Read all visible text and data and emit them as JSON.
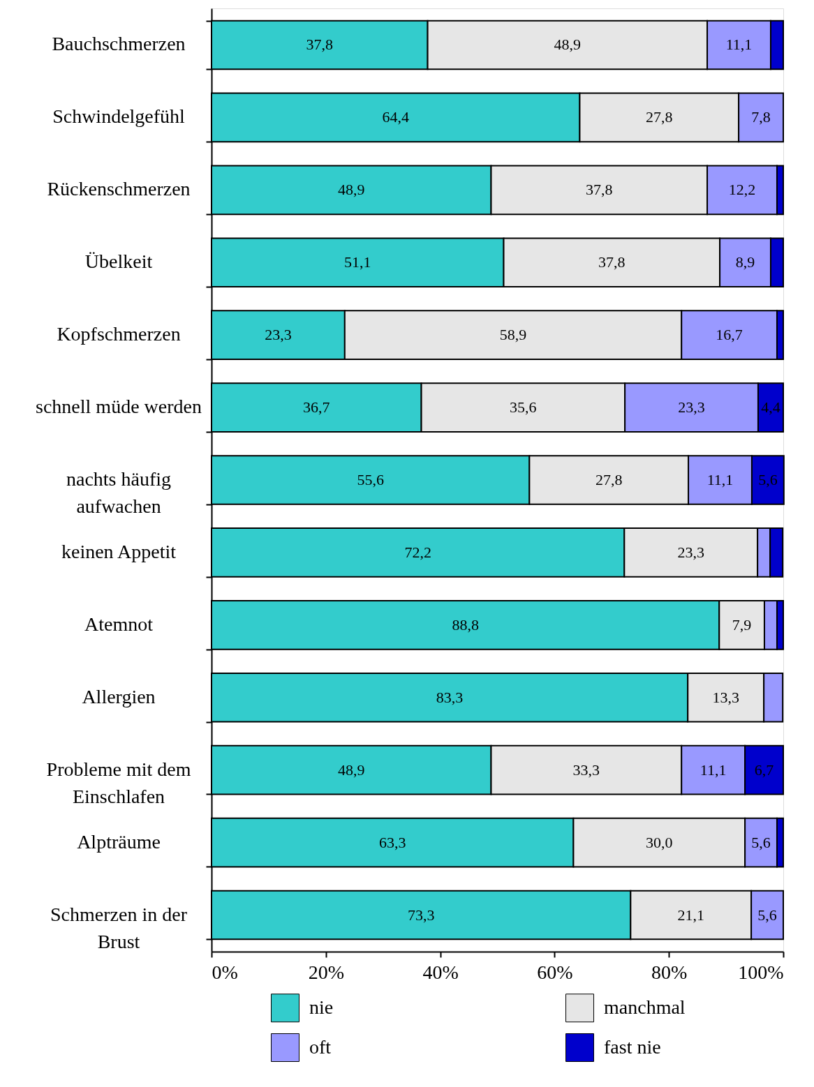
{
  "chart_data": {
    "type": "bar",
    "orientation": "horizontal",
    "stacked": true,
    "categories": [
      "Bauchschmerzen",
      "Schwindelgefühl",
      "Rückenschmerzen",
      "Übelkeit",
      "Kopfschmerzen",
      "schnell müde werden",
      "nachts häufig aufwachen",
      "keinen Appetit",
      "Atemnot",
      "Allergien",
      "Probleme mit dem Einschlafen",
      "Alpträume",
      "Schmerzen in der Brust"
    ],
    "series": [
      {
        "name": "nie",
        "color": "#33cccc",
        "values": [
          37.8,
          64.4,
          48.9,
          51.1,
          23.3,
          36.7,
          55.6,
          72.2,
          88.8,
          83.3,
          48.9,
          63.3,
          73.3
        ],
        "value_labels": [
          "37,8",
          "64,4",
          "48,9",
          "51,1",
          "23,3",
          "36,7",
          "55,6",
          "72,2",
          "88,8",
          "83,3",
          "48,9",
          "63,3",
          "73,3"
        ]
      },
      {
        "name": "manchmal",
        "color": "#e6e6e6",
        "values": [
          48.9,
          27.8,
          37.8,
          37.8,
          58.9,
          35.6,
          27.8,
          23.3,
          7.9,
          13.3,
          33.3,
          30.0,
          21.1
        ],
        "value_labels": [
          "48,9",
          "27,8",
          "37,8",
          "37,8",
          "58,9",
          "35,6",
          "27,8",
          "23,3",
          "7,9",
          "13,3",
          "33,3",
          "30,0",
          "21,1"
        ]
      },
      {
        "name": "oft",
        "color": "#9999ff",
        "values": [
          11.1,
          7.8,
          12.2,
          8.9,
          16.7,
          23.3,
          11.1,
          2.2,
          2.2,
          3.3,
          11.1,
          5.6,
          5.6
        ],
        "value_labels": [
          "11,1",
          "7,8",
          "12,2",
          "8,9",
          "16,7",
          "23,3",
          "11,1",
          null,
          null,
          null,
          "11,1",
          "5,6",
          "5,6"
        ]
      },
      {
        "name": "fast nie",
        "color": "#0000cc",
        "values": [
          2.2,
          null,
          1.1,
          2.2,
          1.1,
          4.4,
          5.6,
          2.2,
          1.1,
          null,
          6.7,
          1.1,
          null
        ],
        "value_labels": [
          null,
          null,
          null,
          null,
          null,
          "4,4",
          "5,6",
          null,
          null,
          null,
          "6,7",
          null,
          null
        ]
      }
    ],
    "xlim": [
      0,
      100
    ],
    "xticks": [
      {
        "value": 0,
        "label": "0%"
      },
      {
        "value": 20,
        "label": "20%"
      },
      {
        "value": 40,
        "label": "40%"
      },
      {
        "value": 60,
        "label": "60%"
      },
      {
        "value": 80,
        "label": "80%"
      },
      {
        "value": 100,
        "label": "100%"
      }
    ],
    "grid": false,
    "legend": "bottom"
  }
}
